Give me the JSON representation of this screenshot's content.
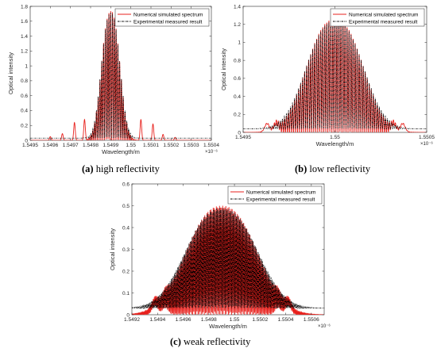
{
  "colors": {
    "simulated": "#e8201c",
    "measured": "#000000",
    "axis": "#262626"
  },
  "captions": [
    {
      "letter": "(a)",
      "text": " high reflectivity"
    },
    {
      "letter": "(b)",
      "text": " low reflectivity"
    },
    {
      "letter": "(c)",
      "text": " weak reflectivity"
    }
  ],
  "chart_data": [
    {
      "type": "line",
      "xlabel": "Wavelength/m",
      "ylabel": "Optical intensity",
      "x_exponent": "×10⁻⁶",
      "xlim": [
        1.5495,
        1.5504
      ],
      "ylim": [
        0,
        1.8
      ],
      "xticks": [
        1.5495,
        1.5496,
        1.5497,
        1.5498,
        1.5499,
        1.55,
        1.5501,
        1.5502,
        1.5503,
        1.5504
      ],
      "xtick_labels": [
        "1.5495",
        "1.5496",
        "1.5497",
        "1.5498",
        "1.5499",
        "1.55",
        "1.5501",
        "1.5502",
        "1.5503",
        "1.5504"
      ],
      "yticks": [
        0,
        0.2,
        0.4,
        0.6,
        0.8,
        1,
        1.2,
        1.4,
        1.6,
        1.8
      ],
      "ytick_labels": [
        "0",
        "0.2",
        "0.4",
        "0.6",
        "0.8",
        "1",
        "1.2",
        "1.4",
        "1.6",
        "1.8"
      ],
      "legend_position": "top-right",
      "series": [
        {
          "name": "Numerical simulated spectrum",
          "style": "solid",
          "color": "#e8201c",
          "peak_intensity": 1.74,
          "center": 1.5499,
          "baseline": 0.0,
          "sidelobes": [
            [
              1.5496,
              0.05
            ],
            [
              1.54966,
              0.09
            ],
            [
              1.54972,
              0.24
            ],
            [
              1.54977,
              0.28
            ],
            [
              1.55005,
              0.28
            ],
            [
              1.55011,
              0.22
            ],
            [
              1.55016,
              0.08
            ],
            [
              1.55022,
              0.04
            ]
          ]
        },
        {
          "name": "Experimental measured result",
          "style": "dash-dot",
          "color": "#000000",
          "peak_intensity": 1.72,
          "center": 1.5499,
          "baseline": 0.03
        }
      ]
    },
    {
      "type": "line",
      "xlabel": "Wavelength/m",
      "ylabel": "Optical intensity",
      "x_exponent": "×10⁻⁶",
      "xlim": [
        1.5495,
        1.5505
      ],
      "ylim": [
        0,
        1.4
      ],
      "xticks": [
        1.5495,
        1.55,
        1.5505
      ],
      "xtick_labels": [
        "1.5495",
        "1.55",
        "1.5505"
      ],
      "yticks": [
        0,
        0.2,
        0.4,
        0.6,
        0.8,
        1,
        1.2,
        1.4
      ],
      "ytick_labels": [
        "0",
        "0.2",
        "0.4",
        "0.6",
        "0.8",
        "1",
        "1.2",
        "1.4"
      ],
      "legend_position": "top-right",
      "series": [
        {
          "name": "Numerical simulated spectrum",
          "style": "solid",
          "color": "#e8201c",
          "peak_intensity": 1.26,
          "center": 1.55,
          "baseline": 0.0,
          "sidelobes": [
            [
              1.54963,
              0.09
            ],
            [
              1.54968,
              0.08
            ],
            [
              1.55032,
              0.08
            ],
            [
              1.55037,
              0.09
            ]
          ]
        },
        {
          "name": "Experimental measured result",
          "style": "dash-dot",
          "color": "#000000",
          "peak_intensity": 1.24,
          "center": 1.55,
          "baseline": 0.04
        }
      ]
    },
    {
      "type": "line",
      "xlabel": "Wavelength/m",
      "ylabel": "Optical intensity",
      "x_exponent": "×10⁻⁶",
      "xlim": [
        1.5492,
        1.5507
      ],
      "ylim": [
        0,
        0.6
      ],
      "xticks": [
        1.5492,
        1.5494,
        1.5496,
        1.5498,
        1.55,
        1.5502,
        1.5504,
        1.5506
      ],
      "xtick_labels": [
        "1.5492",
        "1.5494",
        "1.5496",
        "1.5498",
        "1.55",
        "1.5502",
        "1.5504",
        "1.5506"
      ],
      "yticks": [
        0,
        0.1,
        0.2,
        0.3,
        0.4,
        0.5,
        0.6
      ],
      "ytick_labels": [
        "0",
        "0.1",
        "0.2",
        "0.3",
        "0.4",
        "0.5",
        "0.6"
      ],
      "legend_position": "top-right",
      "series": [
        {
          "name": "Numerical simulated spectrum",
          "style": "solid",
          "color": "#e8201c",
          "peak_intensity": 0.5,
          "center": 1.5499,
          "baseline": 0.0,
          "sidelobes": [
            [
              1.54938,
              0.04
            ],
            [
              1.54946,
              0.03
            ],
            [
              1.55034,
              0.03
            ],
            [
              1.55042,
              0.04
            ]
          ]
        },
        {
          "name": "Experimental measured result",
          "style": "dash-dot",
          "color": "#000000",
          "peak_intensity": 0.49,
          "center": 1.5499,
          "baseline": 0.03
        }
      ]
    }
  ]
}
